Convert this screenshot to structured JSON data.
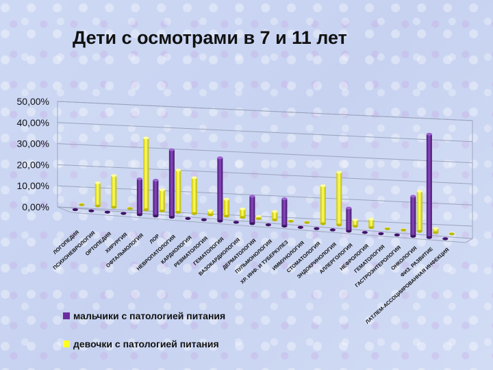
{
  "chart_data": {
    "type": "bar",
    "title": "Дети с осмотрами в 7 и 11 лет",
    "ylim": [
      0,
      0.5
    ],
    "yticks": [
      "0,00%",
      "10,00%",
      "20,00%",
      "30,00%",
      "40,00%",
      "50,00%"
    ],
    "grid": true,
    "legend_position": "bottom",
    "categories": [
      "ЛОГОПЕДИЯ",
      "ПСИХОНЕВРОЛОГИЯ",
      "ОРТОПЕДИЯ",
      "ХИРУРГИЯ",
      "ОФТАЛЬМОЛОГИЯ",
      "ЛОР",
      "НЕВРОПАТОЛОГИЯ",
      "КАРДИОЛОГИЯ",
      "РЕВМАТОЛОГИЯ",
      "ГЕМАТОЛОГИЯ",
      "ВАЗОКАРДИОЛОГИЯ",
      "ДЕРМАТОЛОГИЯ",
      "ПУЛЬМОНОЛОГИЯ",
      "ХР. ИНФ. И ТУБЕРКУЛЕЗ",
      "ИММУНОЛОГИЯ",
      "СТОМАТОЛОГИЯ",
      "ЭНДОКРИНОЛОГИЯ",
      "АЛЛЕРГОЛОГИЯ",
      "НЕФРОЛОГИЯ",
      "ГЕМАТОЛОГИЯ",
      "ГАСТРОЭНТЕРОЛОГИЯ",
      "ОНКОЛОГИЯ",
      "ФИЗ. РАЗВИТИЕ",
      "ЛАТ.ПЕМ-АССОЦИИРОВАННАЯ ИНФЕКЦИЯ"
    ],
    "series": [
      {
        "name": "мальчики с патологией питания",
        "color": "#6b2d9e",
        "values": [
          0.002,
          0.002,
          0.002,
          0.002,
          0.17,
          0.17,
          0.32,
          0.002,
          0.002,
          0.3,
          0.002,
          0.13,
          0.002,
          0.13,
          0.002,
          0.002,
          0.002,
          0.11,
          0.002,
          0.002,
          0.002,
          0.19,
          0.49,
          0.002
        ]
      },
      {
        "name": "девочки с патологией питания",
        "color": "#ffff22",
        "values": [
          0.002,
          0.11,
          0.15,
          0.002,
          0.34,
          0.1,
          0.2,
          0.17,
          0.02,
          0.08,
          0.04,
          0.01,
          0.04,
          0.002,
          0.002,
          0.18,
          0.25,
          0.03,
          0.04,
          0.002,
          0.002,
          0.19,
          0.02,
          0.002
        ]
      }
    ]
  }
}
